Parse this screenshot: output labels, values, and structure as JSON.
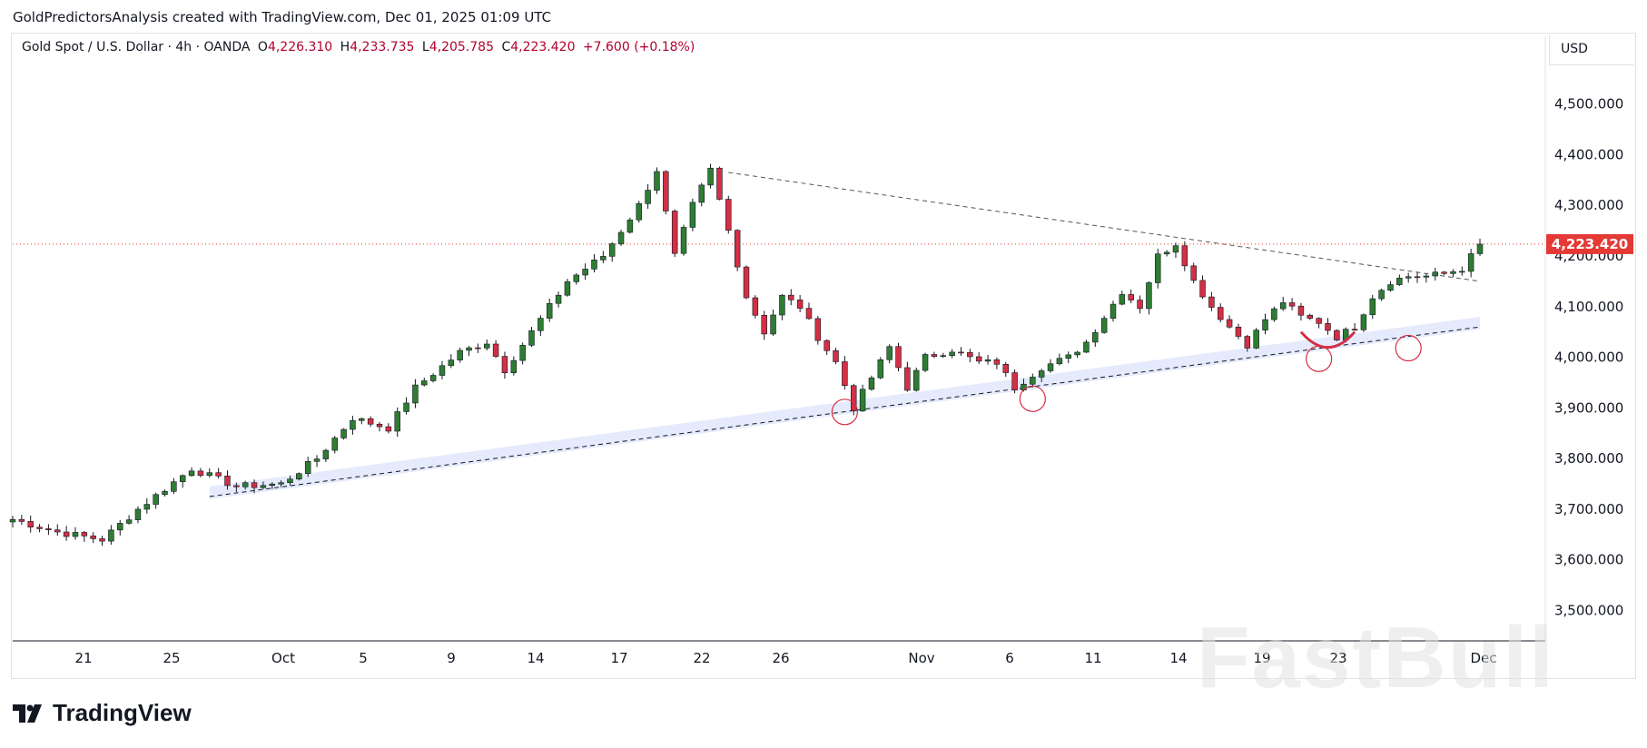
{
  "header": {
    "caption": "GoldPredictorsAnalysis created with TradingView.com, Dec 01, 2025 01:09 UTC"
  },
  "legend": {
    "symbol": "Gold Spot / U.S. Dollar · 4h · OANDA",
    "o_label": "O",
    "o": "4,226.310",
    "h_label": "H",
    "h": "4,233.735",
    "l_label": "L",
    "l": "4,205.785",
    "c_label": "C",
    "c": "4,223.420",
    "change": "+7.600 (+0.18%)"
  },
  "currency": "USD",
  "footer": {
    "logo_text": "TradingView"
  },
  "watermark": "FastBull",
  "colors": {
    "up": "#2e7d32",
    "down": "#d32f45",
    "price_line": "#e53935",
    "channel": "#dfe6fb"
  },
  "chart_data": {
    "type": "candlestick",
    "interval": "4h",
    "ylim": [
      3440,
      4580
    ],
    "y_ticks": [
      3500,
      3600,
      3700,
      3800,
      3900,
      4000,
      4100,
      4200,
      4300,
      4400,
      4500
    ],
    "y_tick_labels": [
      "3,500.000",
      "3,600.000",
      "3,700.000",
      "3,800.000",
      "3,900.000",
      "4,000.000",
      "4,100.000",
      "4,200.000",
      "4,300.000",
      "4,400.000",
      "4,500.000"
    ],
    "x_ticks": [
      "21",
      "25",
      "Oct",
      "5",
      "9",
      "14",
      "17",
      "22",
      "26",
      "Nov",
      "6",
      "11",
      "14",
      "19",
      "23",
      "Dec"
    ],
    "last_price": 4223.42,
    "last_price_label": "4,223.420",
    "path": [
      [
        0,
        3680
      ],
      [
        5,
        3655
      ],
      [
        10,
        3640
      ],
      [
        14,
        3700
      ],
      [
        20,
        3780
      ],
      [
        25,
        3745
      ],
      [
        30,
        3750
      ],
      [
        34,
        3800
      ],
      [
        38,
        3880
      ],
      [
        42,
        3860
      ],
      [
        45,
        3940
      ],
      [
        50,
        4010
      ],
      [
        53,
        4030
      ],
      [
        55,
        3975
      ],
      [
        58,
        4050
      ],
      [
        62,
        4150
      ],
      [
        66,
        4200
      ],
      [
        70,
        4300
      ],
      [
        72,
        4370
      ],
      [
        74,
        4200
      ],
      [
        76,
        4300
      ],
      [
        78,
        4370
      ],
      [
        80,
        4250
      ],
      [
        82,
        4120
      ],
      [
        84,
        4050
      ],
      [
        86,
        4120
      ],
      [
        88,
        4100
      ],
      [
        90,
        4040
      ],
      [
        92,
        3990
      ],
      [
        94,
        3900
      ],
      [
        96,
        3960
      ],
      [
        98,
        4020
      ],
      [
        100,
        3940
      ],
      [
        102,
        4000
      ],
      [
        105,
        4015
      ],
      [
        108,
        3990
      ],
      [
        110,
        3990
      ],
      [
        112,
        3940
      ],
      [
        115,
        3980
      ],
      [
        118,
        4000
      ],
      [
        120,
        4030
      ],
      [
        122,
        4080
      ],
      [
        124,
        4130
      ],
      [
        126,
        4100
      ],
      [
        128,
        4200
      ],
      [
        130,
        4225
      ],
      [
        132,
        4150
      ],
      [
        134,
        4100
      ],
      [
        136,
        4060
      ],
      [
        138,
        4025
      ],
      [
        140,
        4075
      ],
      [
        142,
        4110
      ],
      [
        144,
        4080
      ],
      [
        146,
        4070
      ],
      [
        148,
        4040
      ],
      [
        150,
        4060
      ],
      [
        152,
        4120
      ],
      [
        154,
        4150
      ],
      [
        156,
        4160
      ],
      [
        158,
        4160
      ],
      [
        160,
        4165
      ],
      [
        162,
        4175
      ],
      [
        164,
        4223
      ]
    ],
    "annotations": {
      "support_line": [
        [
          22,
          3725
        ],
        [
          164,
          4060
        ]
      ],
      "resistance_line": [
        [
          80,
          4365
        ],
        [
          164,
          4150
        ]
      ],
      "channel_band": {
        "offset": 20
      },
      "circles": [
        [
          93,
          3892
        ],
        [
          114,
          3918
        ],
        [
          146,
          3997
        ],
        [
          156,
          4018
        ]
      ],
      "arc": [
        [
          144,
          4050
        ],
        [
          147,
          4025
        ],
        [
          150,
          4050
        ]
      ]
    }
  }
}
